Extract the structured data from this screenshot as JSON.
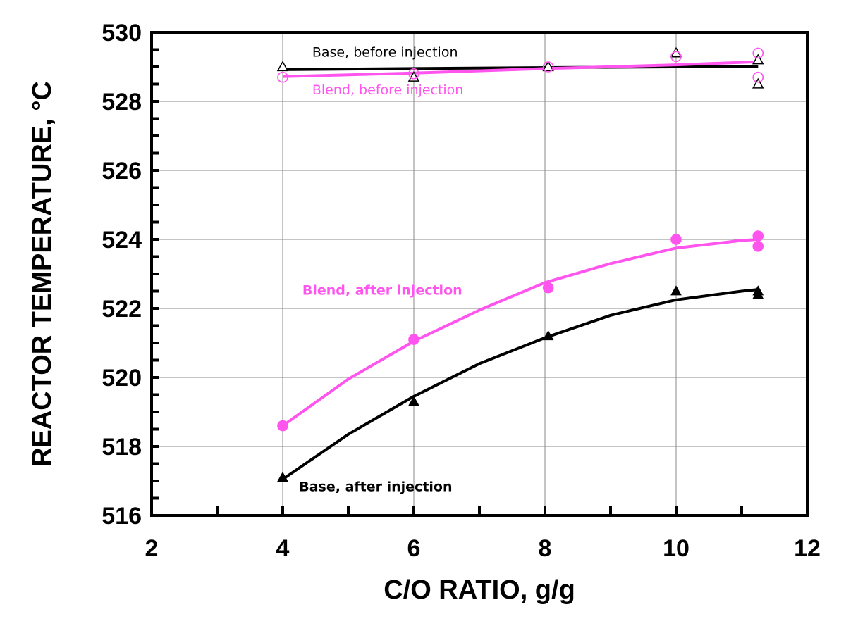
{
  "chart_data": {
    "type": "scatter",
    "xlabel": "C/O RATIO, g/g",
    "ylabel": "REACTOR TEMPERATURE, °C",
    "xlim": [
      2,
      12
    ],
    "ylim": [
      516,
      530
    ],
    "x_ticks": [
      "2",
      "4",
      "6",
      "8",
      "10",
      "12"
    ],
    "y_ticks": [
      "516",
      "518",
      "520",
      "522",
      "524",
      "526",
      "528",
      "530"
    ],
    "grid": true,
    "series": [
      {
        "name": "Base, before injection",
        "color": "#000000",
        "marker": "triangle-open",
        "points": [
          [
            4,
            529.0
          ],
          [
            6,
            528.7
          ],
          [
            8.05,
            529.0
          ],
          [
            10,
            529.4
          ],
          [
            11.25,
            529.2
          ],
          [
            11.25,
            528.5
          ]
        ],
        "fit": [
          [
            4,
            528.92
          ],
          [
            6,
            528.95
          ],
          [
            8,
            528.98
          ],
          [
            10,
            529.0
          ],
          [
            11.25,
            529.02
          ]
        ]
      },
      {
        "name": "Blend, before injection",
        "color": "#ff55ee",
        "marker": "circle-open",
        "points": [
          [
            4,
            528.7
          ],
          [
            6,
            528.8
          ],
          [
            8.05,
            529.0
          ],
          [
            10,
            529.3
          ],
          [
            11.25,
            529.4
          ],
          [
            11.25,
            528.7
          ]
        ],
        "fit": [
          [
            4,
            528.72
          ],
          [
            6,
            528.82
          ],
          [
            8,
            528.95
          ],
          [
            10,
            529.06
          ],
          [
            11.25,
            529.15
          ]
        ]
      },
      {
        "name": "Blend, after injection",
        "color": "#ff55ee",
        "marker": "circle-filled",
        "points": [
          [
            4,
            518.6
          ],
          [
            6,
            521.1
          ],
          [
            8.05,
            522.6
          ],
          [
            10,
            524.0
          ],
          [
            11.25,
            524.1
          ],
          [
            11.25,
            523.8
          ]
        ],
        "fit": [
          [
            4,
            518.6
          ],
          [
            5,
            519.95
          ],
          [
            6,
            521.05
          ],
          [
            7,
            521.95
          ],
          [
            8,
            522.75
          ],
          [
            9,
            523.3
          ],
          [
            10,
            523.75
          ],
          [
            11,
            523.97
          ],
          [
            11.25,
            524.0
          ]
        ]
      },
      {
        "name": "Base, after injection",
        "color": "#000000",
        "marker": "triangle-filled",
        "points": [
          [
            4,
            517.1
          ],
          [
            6,
            519.3
          ],
          [
            8.05,
            521.2
          ],
          [
            10,
            522.5
          ],
          [
            11.25,
            522.5
          ],
          [
            11.25,
            522.4
          ]
        ],
        "fit": [
          [
            4,
            517.05
          ],
          [
            5,
            518.35
          ],
          [
            6,
            519.45
          ],
          [
            7,
            520.4
          ],
          [
            8,
            521.15
          ],
          [
            9,
            521.8
          ],
          [
            10,
            522.25
          ],
          [
            11,
            522.5
          ],
          [
            11.25,
            522.55
          ]
        ]
      }
    ]
  }
}
